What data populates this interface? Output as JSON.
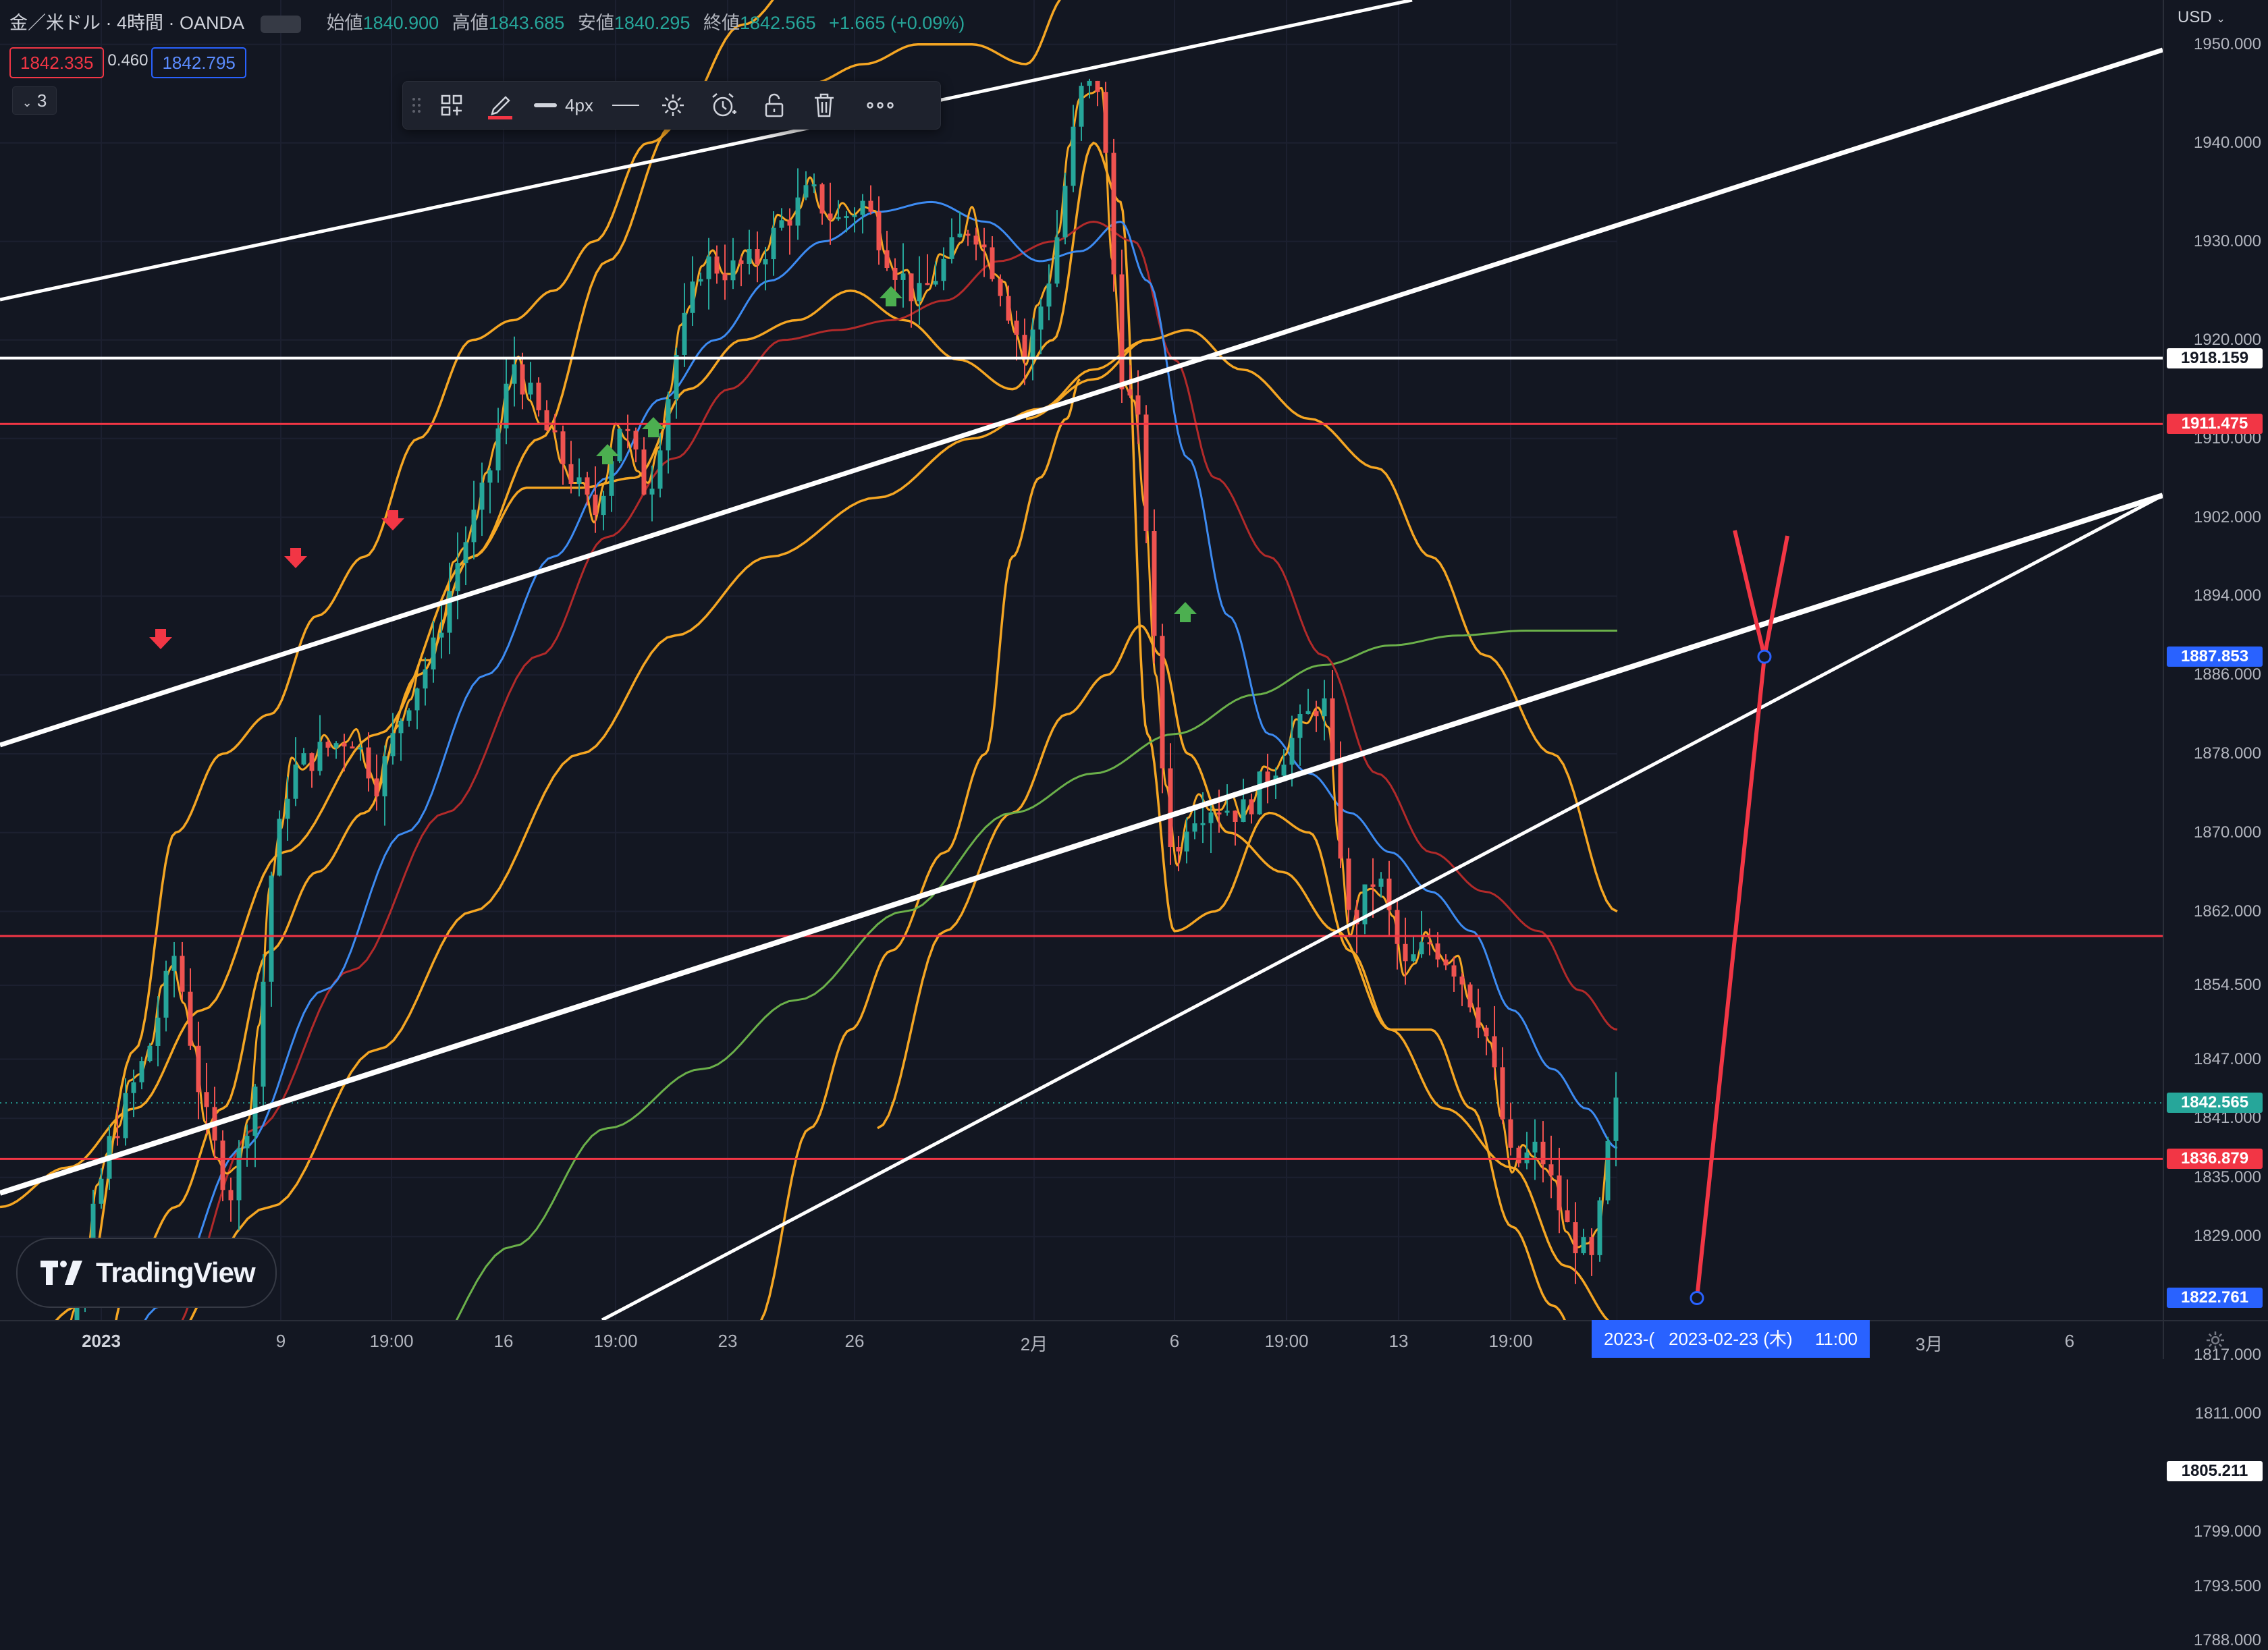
{
  "header": {
    "symbol": "金／米ドル · 4時間 · OANDA",
    "open_label": "始値",
    "open": "1840.900",
    "high_label": "高値",
    "high": "1843.685",
    "low_label": "安値",
    "low": "1840.295",
    "close_label": "終値",
    "close": "1842.565",
    "change": "+1.665 (+0.09%)"
  },
  "quote": {
    "bid": "1842.335",
    "spread": "0.460",
    "ask": "1842.795"
  },
  "indicators_toggle": "3",
  "currency": "USD",
  "toolbar": {
    "width_label": "4px",
    "icons": [
      "drag-handle-icon",
      "template-icon",
      "pencil-icon",
      "line-width-icon",
      "line-style-icon",
      "settings-icon",
      "alert-icon",
      "lock-icon",
      "trash-icon",
      "more-icon"
    ]
  },
  "price_axis": [
    "1950.000",
    "1940.000",
    "1930.000",
    "1920.000",
    "1910.000",
    "1902.000",
    "1894.000",
    "1886.000",
    "1878.000",
    "1870.000",
    "1862.000",
    "1854.500",
    "1847.000",
    "1841.000",
    "1835.000",
    "1829.000",
    "1817.000",
    "1811.000",
    "1799.000",
    "1793.500",
    "1788.000"
  ],
  "price_labels": [
    {
      "text": "1918.159",
      "kind": "white"
    },
    {
      "text": "1911.475",
      "kind": "red"
    },
    {
      "text": "1887.853",
      "kind": "blue"
    },
    {
      "text": "1842.565",
      "kind": "green"
    },
    {
      "text": "1836.879",
      "kind": "red"
    },
    {
      "text": "1822.761",
      "kind": "blue"
    },
    {
      "text": "1805.211",
      "kind": "white"
    }
  ],
  "time_axis": [
    {
      "text": "2023",
      "bold": true
    },
    {
      "text": "9"
    },
    {
      "text": "19:00"
    },
    {
      "text": "16"
    },
    {
      "text": "19:00"
    },
    {
      "text": "23"
    },
    {
      "text": "26"
    },
    {
      "text": "2月"
    },
    {
      "text": "6"
    },
    {
      "text": "19:00"
    },
    {
      "text": "13"
    },
    {
      "text": "19:00"
    },
    {
      "text": "3月"
    },
    {
      "text": "6"
    }
  ],
  "time_badge": {
    "left": "2023-(",
    "date": "2023-02-23 (木)",
    "time": "11:00"
  },
  "branding": "TradingView",
  "colors": {
    "up": "#26a69a",
    "down": "#ef5350",
    "bg": "#131722",
    "accent": "#2962ff",
    "band": "#f5a623",
    "ma_blue": "#3d8bf2",
    "ma_red": "#b22a2a",
    "ma_green": "#6bb04a"
  },
  "chart_data": {
    "type": "candlestick",
    "instrument": "金／米ドル",
    "ylim": [
      1783,
      1955
    ],
    "horizontal_levels": [
      1918.159,
      1911.475,
      1859.5,
      1836.879,
      1805.211
    ],
    "projection": {
      "from": 1822.761,
      "to": 1887.853
    }
  }
}
